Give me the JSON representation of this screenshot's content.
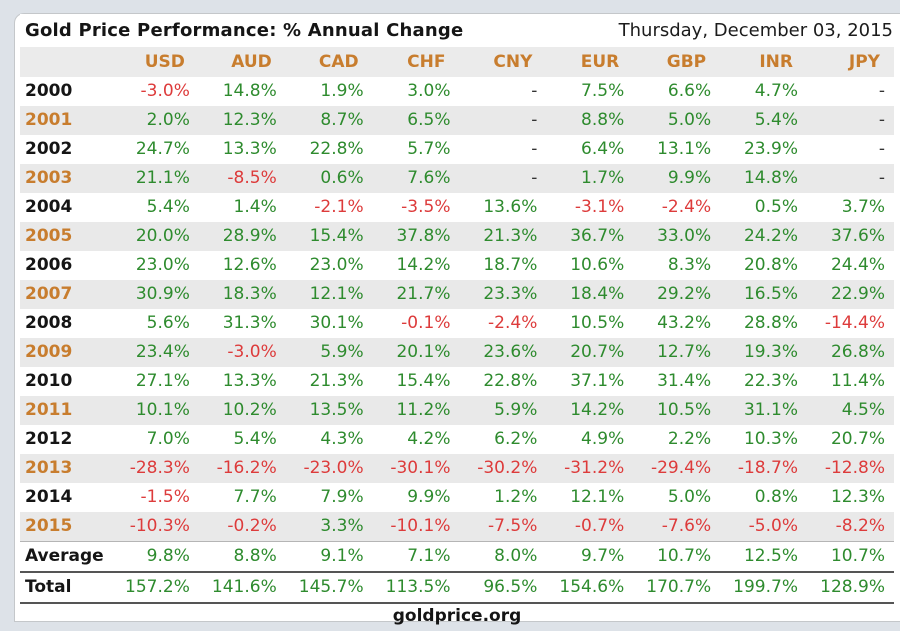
{
  "header": {
    "title": "Gold Price Performance: % Annual Change",
    "date": "Thursday, December 03, 2015"
  },
  "footer": {
    "source": "goldprice.org"
  },
  "colors": {
    "positive": "#2e8b2e",
    "negative": "#dd3b3b",
    "accent_orange": "#c87d2e",
    "stripe_gray": "#e9e9e9",
    "header_gray": "#ebebeb"
  },
  "chart_data": {
    "type": "table",
    "title": "Gold Price Performance: % Annual Change",
    "columns": [
      "USD",
      "AUD",
      "CAD",
      "CHF",
      "CNY",
      "EUR",
      "GBP",
      "INR",
      "JPY"
    ],
    "rows": [
      {
        "label": "2000",
        "values": [
          "-3.0%",
          "14.8%",
          "1.9%",
          "3.0%",
          "-",
          "7.5%",
          "6.6%",
          "4.7%",
          "-"
        ]
      },
      {
        "label": "2001",
        "values": [
          "2.0%",
          "12.3%",
          "8.7%",
          "6.5%",
          "-",
          "8.8%",
          "5.0%",
          "5.4%",
          "-"
        ]
      },
      {
        "label": "2002",
        "values": [
          "24.7%",
          "13.3%",
          "22.8%",
          "5.7%",
          "-",
          "6.4%",
          "13.1%",
          "23.9%",
          "-"
        ]
      },
      {
        "label": "2003",
        "values": [
          "21.1%",
          "-8.5%",
          "0.6%",
          "7.6%",
          "-",
          "1.7%",
          "9.9%",
          "14.8%",
          "-"
        ]
      },
      {
        "label": "2004",
        "values": [
          "5.4%",
          "1.4%",
          "-2.1%",
          "-3.5%",
          "13.6%",
          "-3.1%",
          "-2.4%",
          "0.5%",
          "3.7%"
        ]
      },
      {
        "label": "2005",
        "values": [
          "20.0%",
          "28.9%",
          "15.4%",
          "37.8%",
          "21.3%",
          "36.7%",
          "33.0%",
          "24.2%",
          "37.6%"
        ]
      },
      {
        "label": "2006",
        "values": [
          "23.0%",
          "12.6%",
          "23.0%",
          "14.2%",
          "18.7%",
          "10.6%",
          "8.3%",
          "20.8%",
          "24.4%"
        ]
      },
      {
        "label": "2007",
        "values": [
          "30.9%",
          "18.3%",
          "12.1%",
          "21.7%",
          "23.3%",
          "18.4%",
          "29.2%",
          "16.5%",
          "22.9%"
        ]
      },
      {
        "label": "2008",
        "values": [
          "5.6%",
          "31.3%",
          "30.1%",
          "-0.1%",
          "-2.4%",
          "10.5%",
          "43.2%",
          "28.8%",
          "-14.4%"
        ]
      },
      {
        "label": "2009",
        "values": [
          "23.4%",
          "-3.0%",
          "5.9%",
          "20.1%",
          "23.6%",
          "20.7%",
          "12.7%",
          "19.3%",
          "26.8%"
        ]
      },
      {
        "label": "2010",
        "values": [
          "27.1%",
          "13.3%",
          "21.3%",
          "15.4%",
          "22.8%",
          "37.1%",
          "31.4%",
          "22.3%",
          "11.4%"
        ]
      },
      {
        "label": "2011",
        "values": [
          "10.1%",
          "10.2%",
          "13.5%",
          "11.2%",
          "5.9%",
          "14.2%",
          "10.5%",
          "31.1%",
          "4.5%"
        ]
      },
      {
        "label": "2012",
        "values": [
          "7.0%",
          "5.4%",
          "4.3%",
          "4.2%",
          "6.2%",
          "4.9%",
          "2.2%",
          "10.3%",
          "20.7%"
        ]
      },
      {
        "label": "2013",
        "values": [
          "-28.3%",
          "-16.2%",
          "-23.0%",
          "-30.1%",
          "-30.2%",
          "-31.2%",
          "-29.4%",
          "-18.7%",
          "-12.8%"
        ]
      },
      {
        "label": "2014",
        "values": [
          "-1.5%",
          "7.7%",
          "7.9%",
          "9.9%",
          "1.2%",
          "12.1%",
          "5.0%",
          "0.8%",
          "12.3%"
        ]
      },
      {
        "label": "2015",
        "values": [
          "-10.3%",
          "-0.2%",
          "3.3%",
          "-10.1%",
          "-7.5%",
          "-0.7%",
          "-7.6%",
          "-5.0%",
          "-8.2%"
        ]
      },
      {
        "label": "Average",
        "values": [
          "9.8%",
          "8.8%",
          "9.1%",
          "7.1%",
          "8.0%",
          "9.7%",
          "10.7%",
          "12.5%",
          "10.7%"
        ]
      },
      {
        "label": "Total",
        "values": [
          "157.2%",
          "141.6%",
          "145.7%",
          "113.5%",
          "96.5%",
          "154.6%",
          "170.7%",
          "199.7%",
          "128.9%"
        ]
      }
    ]
  }
}
